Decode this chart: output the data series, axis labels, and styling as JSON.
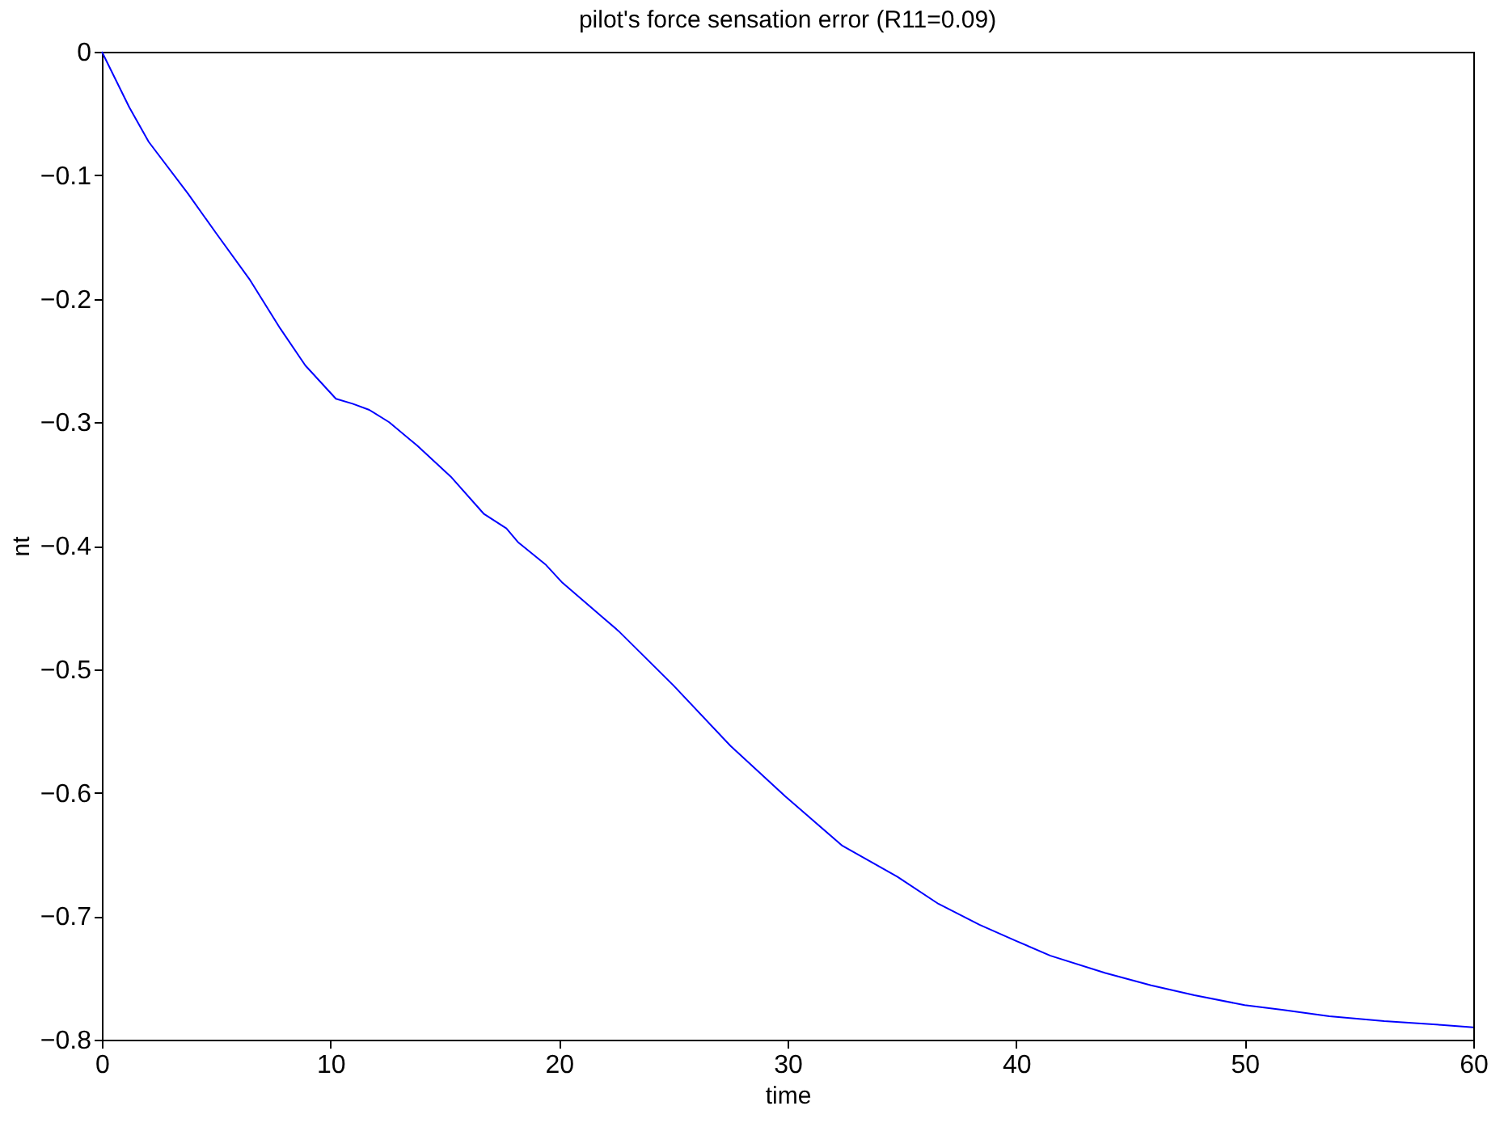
{
  "chart_data": {
    "type": "line",
    "title": "pilot's  force sensation error (R11=0.09)",
    "xlabel": "time",
    "ylabel": "nt",
    "x": [
      0,
      1.2,
      2.05,
      3.77,
      5.0,
      6.45,
      7.8,
      8.9,
      10.24,
      10.97,
      11.7,
      12.57,
      13.8,
      15.26,
      16.7,
      17.7,
      18.2,
      19.4,
      20.15,
      22.6,
      25.0,
      27.5,
      29.9,
      32.4,
      34.8,
      36.6,
      38.4,
      40,
      41.5,
      43.9,
      45.9,
      47.8,
      50,
      51.7,
      53.7,
      56.1,
      58.6,
      60
    ],
    "series": [
      {
        "color": "#0000ff",
        "values": [
          0,
          -0.045,
          -0.073,
          -0.115,
          -0.147,
          -0.184,
          -0.224,
          -0.254,
          -0.281,
          -0.285,
          -0.29,
          -0.3,
          -0.319,
          -0.344,
          -0.374,
          -0.386,
          -0.397,
          -0.415,
          -0.43,
          -0.469,
          -0.513,
          -0.562,
          -0.603,
          -0.643,
          -0.668,
          -0.69,
          -0.707,
          -0.72,
          -0.732,
          -0.746,
          -0.756,
          -0.764,
          -0.772,
          -0.776,
          -0.781,
          -0.785,
          -0.788,
          -0.79
        ]
      }
    ],
    "xlim": [
      0,
      60
    ],
    "xticks": [
      0,
      10,
      20,
      30,
      40,
      50,
      60
    ],
    "ylim": [
      -0.8,
      0
    ],
    "yticks": [
      -0.8,
      -0.7,
      -0.6,
      -0.5,
      -0.4,
      -0.3,
      -0.2,
      -0.1,
      0
    ],
    "grid": false,
    "marker": "none",
    "line_style": "solid"
  }
}
